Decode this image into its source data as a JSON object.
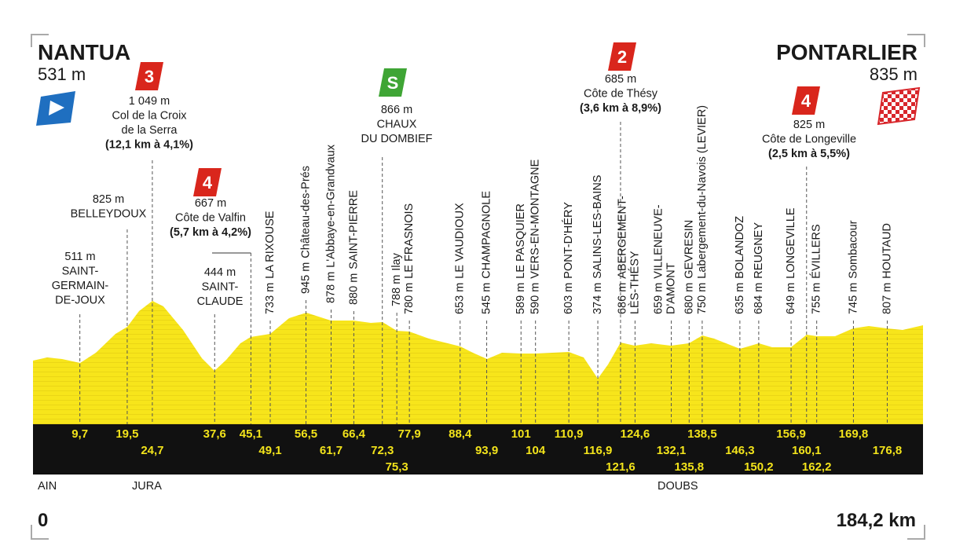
{
  "start": {
    "name": "NANTUA",
    "alt": "531 m"
  },
  "finish": {
    "name": "PONTARLIER",
    "alt": "835 m"
  },
  "waypoints": [
    {
      "km": "9,7",
      "kind": "town",
      "alt": "511 m",
      "name": [
        "SAINT-",
        "GERMAIN-",
        "DE-JOUX"
      ]
    },
    {
      "km": "19,5",
      "kind": "town",
      "alt": "825 m",
      "name": [
        "BELLEYDOUX"
      ]
    },
    {
      "km": "24,7",
      "kind": "climb",
      "category": "3",
      "alt": "1 049 m",
      "name": [
        "Col de la Croix",
        "de la Serra"
      ],
      "detail": "(12,1 km à 4,1%)"
    },
    {
      "km": "37,6",
      "kind": "town",
      "alt": "444 m",
      "name": [
        "SAINT-",
        "CLAUDE"
      ]
    },
    {
      "km": "45,1",
      "kind": "climb",
      "category": "4",
      "alt": "667 m",
      "name": [
        "Côte de Valfin"
      ],
      "detail": "(5,7 km à 4,2%)"
    },
    {
      "km": "49,1",
      "kind": "town",
      "alt": "733 m",
      "name": [
        "LA RIXOUSE"
      ]
    },
    {
      "km": "56,5",
      "kind": "town",
      "alt": "945 m",
      "name": [
        "Château-des-Prés"
      ]
    },
    {
      "km": "61,7",
      "kind": "town",
      "alt": "878 m",
      "name": [
        "L'Abbaye-en-Grandvaux"
      ]
    },
    {
      "km": "66,4",
      "kind": "town",
      "alt": "880 m",
      "name": [
        "SAINT-PIERRE"
      ]
    },
    {
      "km": "72,3",
      "kind": "sprint",
      "category": "S",
      "alt": "866 m",
      "name": [
        "CHAUX",
        "DU DOMBIEF"
      ]
    },
    {
      "km": "75,3",
      "kind": "town",
      "alt": "788 m",
      "name": [
        "Ilay"
      ]
    },
    {
      "km": "77,9",
      "kind": "town",
      "alt": "780 m",
      "name": [
        "LE FRASNOIS"
      ]
    },
    {
      "km": "88,4",
      "kind": "town",
      "alt": "653 m",
      "name": [
        "LE VAUDIOUX"
      ]
    },
    {
      "km": "93,9",
      "kind": "town",
      "alt": "545 m",
      "name": [
        "CHAMPAGNOLE"
      ]
    },
    {
      "km": "101",
      "kind": "town",
      "alt": "589 m",
      "name": [
        "LE PASQUIER"
      ]
    },
    {
      "km": "104",
      "kind": "town",
      "alt": "590 m",
      "name": [
        "VERS-EN-MONTAGNE"
      ]
    },
    {
      "km": "110,9",
      "kind": "town",
      "alt": "603 m",
      "name": [
        "PONT-D'HÉRY"
      ]
    },
    {
      "km": "116,9",
      "kind": "town",
      "alt": "374 m",
      "name": [
        "SALINS-LES-BAINS"
      ]
    },
    {
      "km": "121,6",
      "kind": "climb",
      "category": "2",
      "alt": "685 m",
      "name": [
        "Côte de Thésy"
      ],
      "detail": "(3,6 km à 8,9%)"
    },
    {
      "km": "124,6",
      "kind": "town",
      "alt": "686 m",
      "name": [
        "ABERGEMENT-",
        "LÈS-THÉSY"
      ]
    },
    {
      "km": "132,1",
      "kind": "town",
      "alt": "659 m",
      "name": [
        "VILLENEUVE-",
        "D'AMONT"
      ]
    },
    {
      "km": "135,8",
      "kind": "town",
      "alt": "680 m",
      "name": [
        "GEVRESIN"
      ]
    },
    {
      "km": "138,5",
      "kind": "town",
      "alt": "750 m",
      "name": [
        "Labergement-du-Navois (LEVIER)"
      ]
    },
    {
      "km": "146,3",
      "kind": "town",
      "alt": "635 m",
      "name": [
        "BOLANDOZ"
      ]
    },
    {
      "km": "150,2",
      "kind": "town",
      "alt": "684 m",
      "name": [
        "REUGNEY"
      ]
    },
    {
      "km": "156,9",
      "kind": "town",
      "alt": "649 m",
      "name": [
        "LONGEVILLE"
      ]
    },
    {
      "km": "160,1",
      "kind": "climb",
      "category": "4",
      "alt": "825 m",
      "name": [
        "Côte de Longeville"
      ],
      "detail": "(2,5 km à 5,5%)"
    },
    {
      "km": "162,2",
      "kind": "town",
      "alt": "755 m",
      "name": [
        "ÉVILLERS"
      ]
    },
    {
      "km": "169,8",
      "kind": "town",
      "alt": "745 m",
      "name": [
        "Sombacour"
      ]
    },
    {
      "km": "176,8",
      "kind": "town",
      "alt": "807 m",
      "name": [
        "HOUTAUD"
      ]
    }
  ],
  "regions": [
    "AIN",
    "JURA",
    "DOUBS"
  ],
  "distance_start": "0",
  "distance_total": "184,2 km"
}
